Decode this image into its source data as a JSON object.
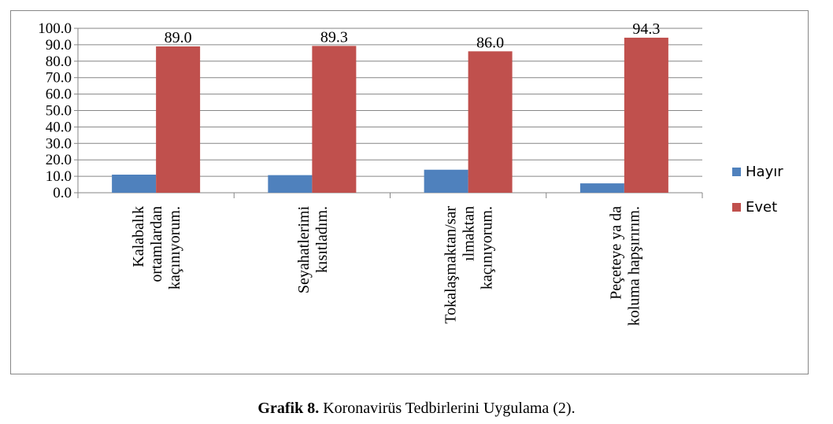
{
  "chart_data": {
    "type": "bar",
    "categories": [
      [
        "Kalabalık",
        "ortamlardan",
        "kaçınıyorum."
      ],
      [
        "Seyahatlerimi",
        "kısıtladım."
      ],
      [
        "Tokalaşmaktan/sar",
        "ılmaktan",
        "kaçınıyorum."
      ],
      [
        "Peçeteye ya da",
        "koluma hapşırırım."
      ]
    ],
    "series": [
      {
        "name": "Hayır",
        "color": "#4f81bd",
        "values": [
          11.0,
          10.7,
          14.0,
          5.7
        ]
      },
      {
        "name": "Evet",
        "color": "#c0504d",
        "values": [
          89.0,
          89.3,
          86.0,
          94.3
        ]
      }
    ],
    "data_labels": [
      "89.0",
      "89.3",
      "86.0",
      "94.3"
    ],
    "yticks": [
      "0.0",
      "10.0",
      "20.0",
      "30.0",
      "40.0",
      "50.0",
      "60.0",
      "70.0",
      "80.0",
      "90.0",
      "100.0"
    ],
    "ylim": [
      0,
      100
    ],
    "legend_position": "right",
    "xlabel": "",
    "ylabel": ""
  },
  "caption": {
    "bold": "Grafik 8.",
    "text": " Koronavirüs Tedbirlerini Uygulama (2)."
  }
}
